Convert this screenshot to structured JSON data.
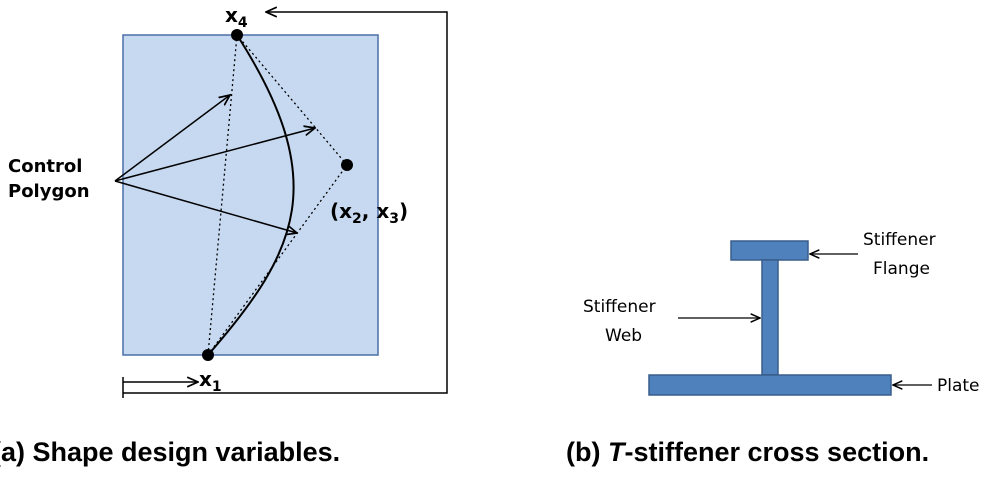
{
  "panel_a": {
    "control_polygon_line1": "Control",
    "control_polygon_line2": "Polygon",
    "x4_base": "x",
    "x4_sub": "4",
    "x1_base": "x",
    "x1_sub": "1",
    "x23_open": "(x",
    "x23_sub2": "2",
    "x23_mid": ", x",
    "x23_sub3": "3",
    "x23_close": ")",
    "caption": "(a)  Shape design variables.",
    "colors": {
      "plate_fill": "#c6d9f1",
      "plate_stroke": "#4a6fa5"
    }
  },
  "panel_b": {
    "flange_label_line1": "Stiffener",
    "flange_label_line2": "Flange",
    "web_label_line1": "Stiffener",
    "web_label_line2": "Web",
    "plate_label": "Plate",
    "caption_prefix": "(b)  ",
    "caption_italic": "T",
    "caption_rest": "-stiffener cross section.",
    "colors": {
      "stiffener_fill": "#4f81bd",
      "stiffener_stroke": "#385d8a"
    }
  }
}
